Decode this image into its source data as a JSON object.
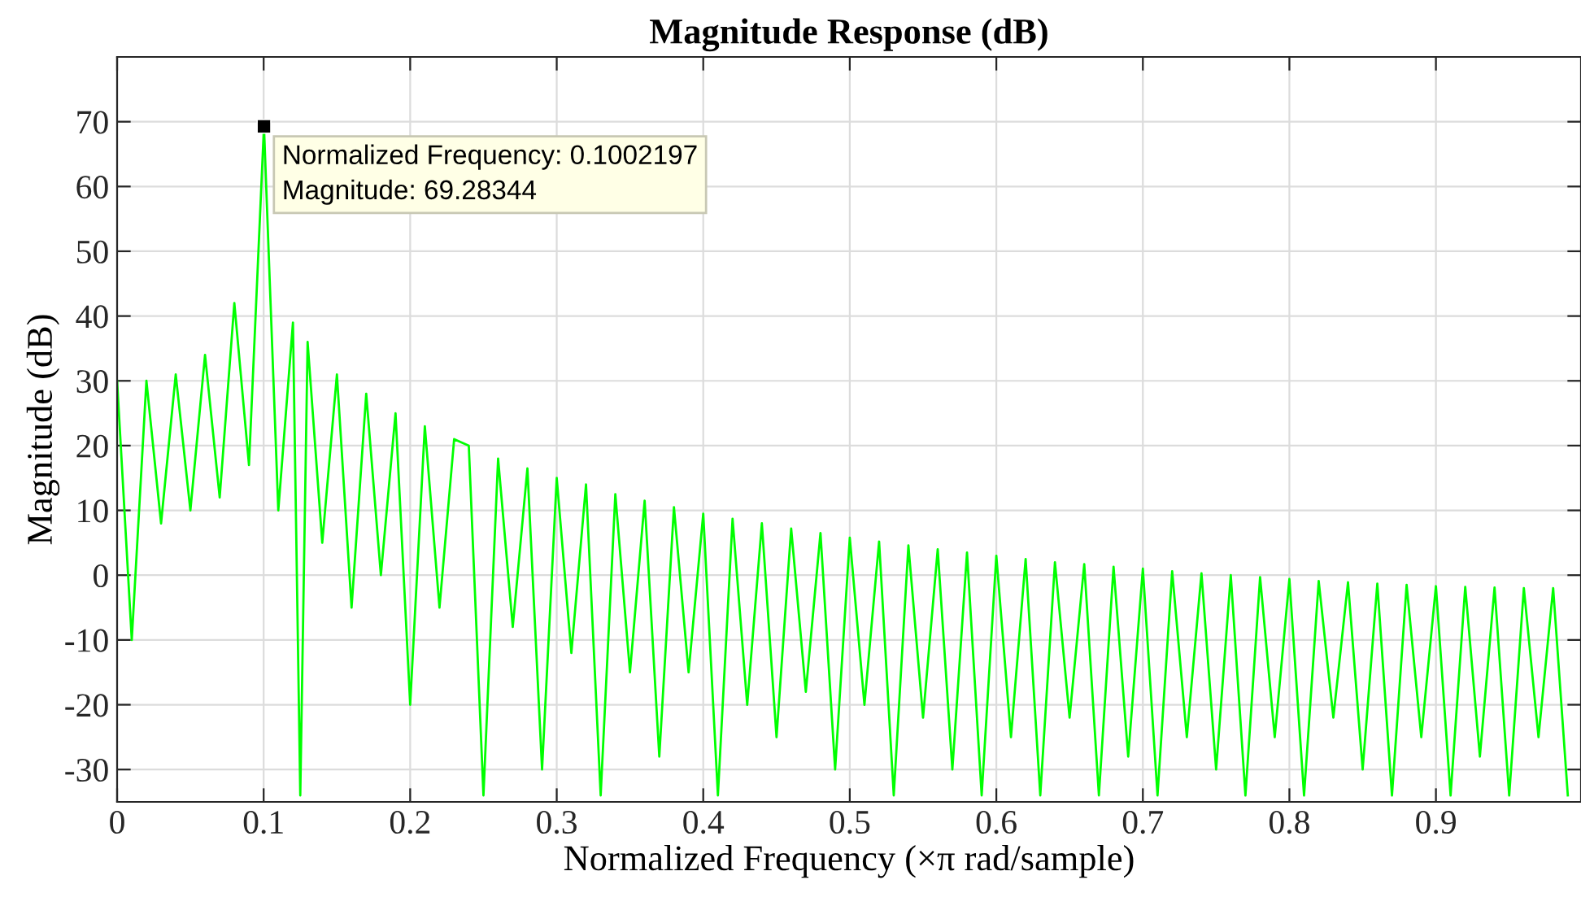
{
  "chart_data": {
    "type": "line",
    "title": "Magnitude Response (dB)",
    "xlabel": "Normalized Frequency (×π rad/sample)",
    "ylabel": "Magnitude (dB)",
    "x": [
      0,
      0.01,
      0.02,
      0.03,
      0.04,
      0.05,
      0.06,
      0.07,
      0.08,
      0.09,
      0.1002197,
      0.11,
      0.12,
      0.125,
      0.13,
      0.14,
      0.15,
      0.16,
      0.17,
      0.18,
      0.19,
      0.2,
      0.21,
      0.22,
      0.23,
      0.24,
      0.25,
      0.26,
      0.27,
      0.28,
      0.29,
      0.3,
      0.31,
      0.32,
      0.33,
      0.34,
      0.35,
      0.36,
      0.37,
      0.38,
      0.39,
      0.4,
      0.41,
      0.42,
      0.43,
      0.44,
      0.45,
      0.46,
      0.47,
      0.48,
      0.49,
      0.5,
      0.51,
      0.52,
      0.53,
      0.54,
      0.55,
      0.56,
      0.57,
      0.58,
      0.59,
      0.6,
      0.61,
      0.62,
      0.63,
      0.64,
      0.65,
      0.66,
      0.67,
      0.68,
      0.69,
      0.7,
      0.71,
      0.72,
      0.73,
      0.74,
      0.75,
      0.76,
      0.77,
      0.78,
      0.79,
      0.8,
      0.81,
      0.82,
      0.83,
      0.84,
      0.85,
      0.86,
      0.87,
      0.88,
      0.89,
      0.9,
      0.91,
      0.92,
      0.93,
      0.94,
      0.95,
      0.96,
      0.97,
      0.98,
      0.99
    ],
    "series": [
      {
        "color": "#00ff00",
        "values": [
          30,
          -10,
          30,
          8,
          31,
          10,
          34,
          12,
          42,
          17,
          69.28344,
          10,
          39,
          -34,
          36,
          5,
          31,
          -5,
          28,
          0,
          25,
          -20,
          23,
          -5,
          21,
          20,
          -34,
          18,
          -8,
          16.5,
          -30,
          15,
          -12,
          14,
          -34,
          12.5,
          -15,
          11.5,
          -28,
          10.5,
          -15,
          9.5,
          -34,
          8.7,
          -20,
          8,
          -25,
          7.2,
          -18,
          6.5,
          -30,
          5.8,
          -20,
          5.2,
          -34,
          4.6,
          -22,
          4,
          -30,
          3.5,
          -34,
          3,
          -25,
          2.5,
          -34,
          2,
          -22,
          1.7,
          -34,
          1.3,
          -28,
          1,
          -34,
          0.6,
          -25,
          0.3,
          -30,
          0,
          -34,
          -0.3,
          -25,
          -0.6,
          -34,
          -0.9,
          -22,
          -1.1,
          -30,
          -1.3,
          -34,
          -1.5,
          -25,
          -1.7,
          -34,
          -1.8,
          -28,
          -1.9,
          -34,
          -2,
          -25,
          -2,
          -34
        ]
      }
    ],
    "xlim": [
      0,
      0.999
    ],
    "ylim": [
      -35,
      80
    ],
    "xticks": [
      0,
      0.1,
      0.2,
      0.3,
      0.4,
      0.5,
      0.6,
      0.7,
      0.8,
      0.9
    ],
    "yticks": [
      -30,
      -20,
      -10,
      0,
      10,
      20,
      30,
      40,
      50,
      60,
      70
    ],
    "grid": true,
    "marker": "none",
    "line_style": "solid",
    "annotations": [
      {
        "text": "Normalized Frequency: 0.1002197\nMagnitude: 69.28344",
        "x": 0.1002197,
        "y": 69.28344
      }
    ]
  }
}
